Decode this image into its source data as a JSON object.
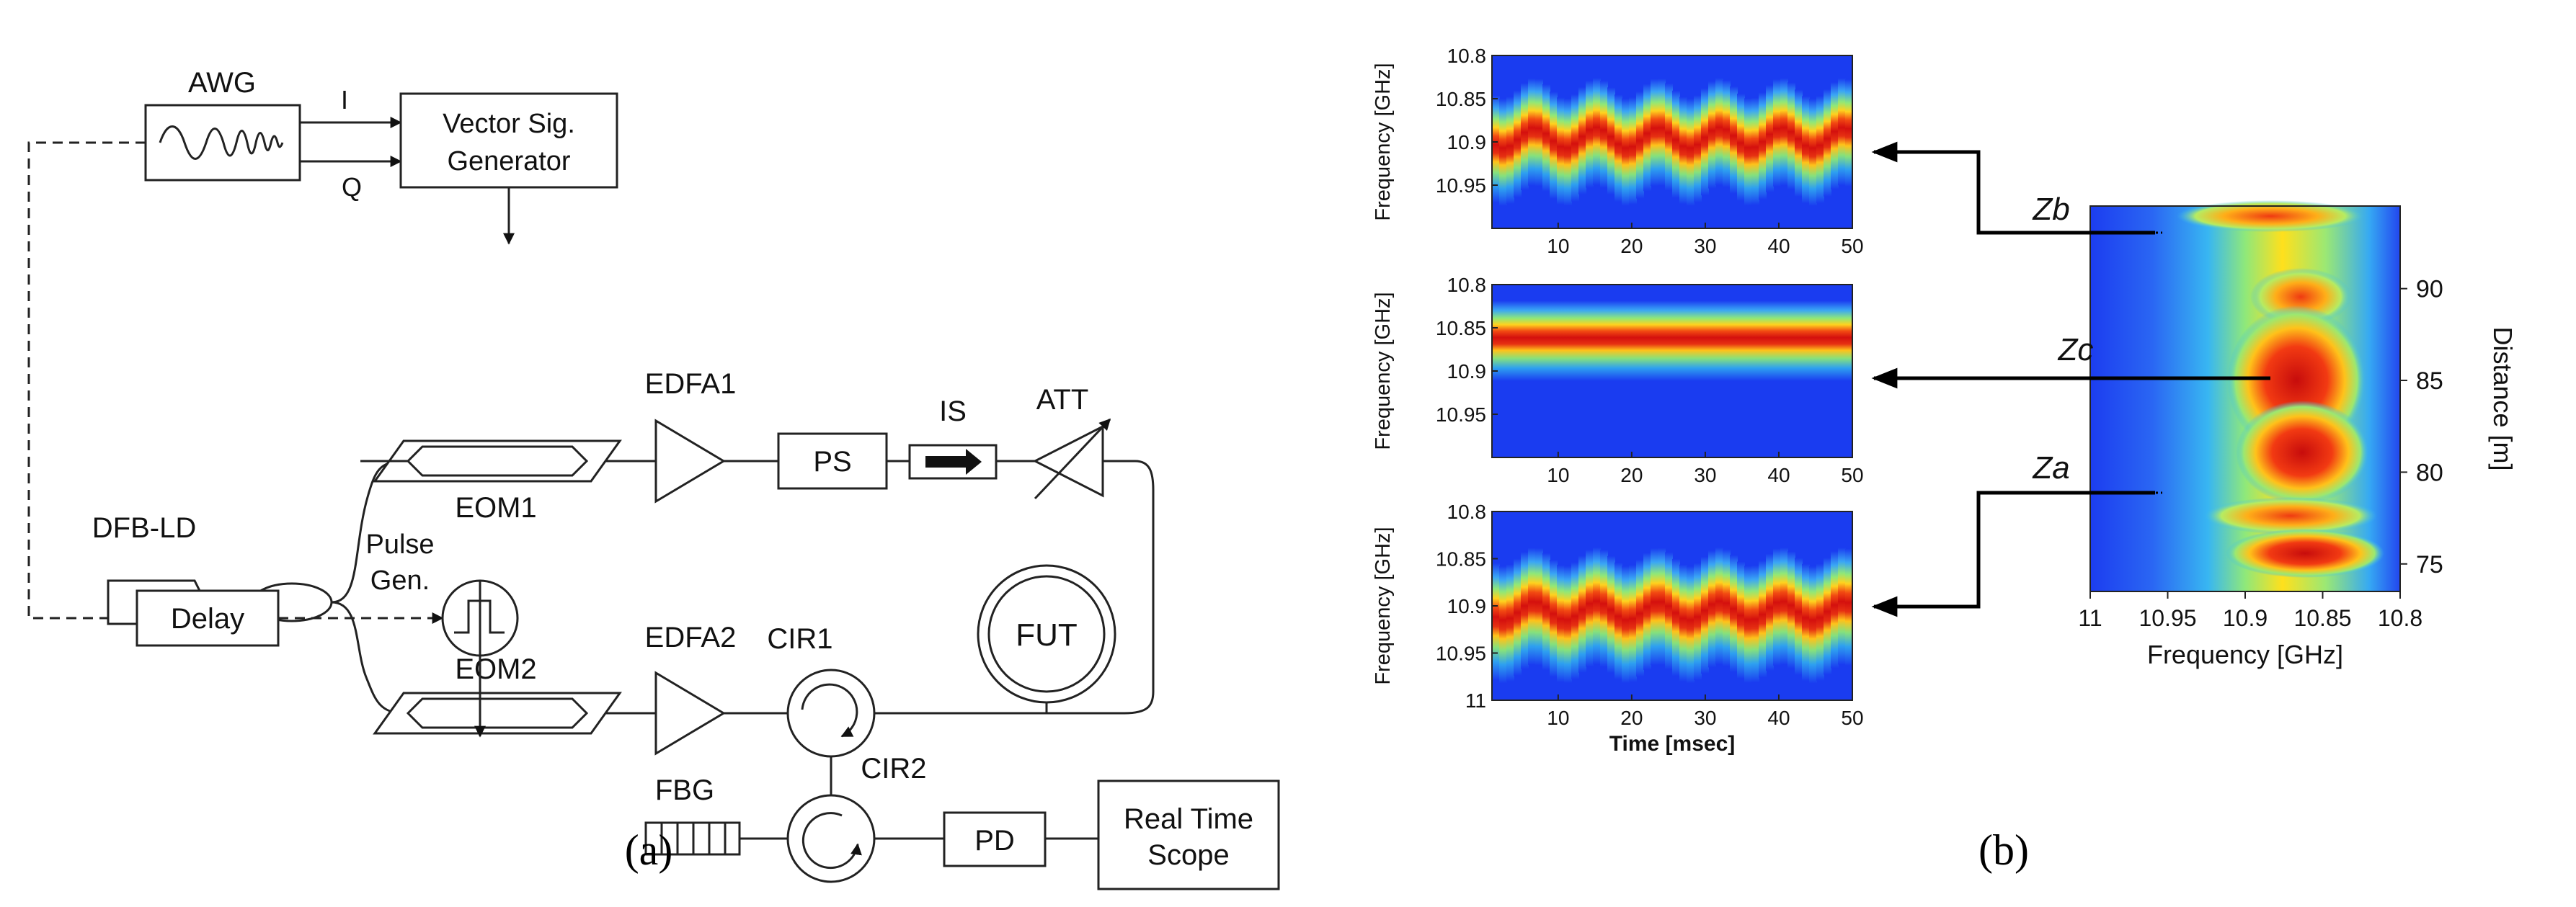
{
  "panel_a": {
    "caption": "(a)",
    "awg": "AWG",
    "i_label": "I",
    "q_label": "Q",
    "vsg_line1": "Vector Sig.",
    "vsg_line2": "Generator",
    "dfb": "DFB-LD",
    "eom1": "EOM1",
    "eom2": "EOM2",
    "edfa1": "EDFA1",
    "edfa2": "EDFA2",
    "ps": "PS",
    "is": "IS",
    "att": "ATT",
    "fut": "FUT",
    "cir1": "CIR1",
    "cir2": "CIR2",
    "pulse_line1": "Pulse",
    "pulse_line2": "Gen.",
    "delay": "Delay",
    "fbg": "FBG",
    "pd": "PD",
    "scope_line1": "Real Time",
    "scope_line2": "Scope"
  },
  "panel_b": {
    "caption": "(b)",
    "small_ylabel": "Frequency [GHz]",
    "small_xlabel": "Time [msec]",
    "big_xlabel": "Frequency [GHz]",
    "big_ylabel": "Distance [m]",
    "za": "Za",
    "zb": "Zb",
    "zc": "Zc"
  },
  "chart_data": [
    {
      "type": "heatmap",
      "panel": "top",
      "xlabel": "",
      "ylabel": "Frequency [GHz]",
      "xticks": [
        "10",
        "20",
        "30",
        "40",
        "50"
      ],
      "yticks": [
        "10.8",
        "10.85",
        "10.9",
        "10.95"
      ],
      "x": [
        1,
        50
      ],
      "ylim": [
        10.8,
        11.0
      ],
      "peak_center_ghz": 10.9,
      "oscillation_amplitude_ghz": 0.012,
      "oscillation_period_msec": 8.4
    },
    {
      "type": "heatmap",
      "panel": "middle",
      "xlabel": "",
      "ylabel": "Frequency [GHz]",
      "xticks": [
        "10",
        "20",
        "30",
        "40",
        "50"
      ],
      "yticks": [
        "10.8",
        "10.85",
        "10.9",
        "10.95"
      ],
      "x": [
        1,
        50
      ],
      "ylim": [
        10.8,
        11.0
      ],
      "peak_center_ghz": 10.865,
      "oscillation_amplitude_ghz": 0.0,
      "oscillation_period_msec": 8.4
    },
    {
      "type": "heatmap",
      "panel": "bottom",
      "xlabel": "Time [msec]",
      "ylabel": "Frequency [GHz]",
      "xticks": [
        "10",
        "20",
        "30",
        "40",
        "50"
      ],
      "yticks": [
        "10.8",
        "10.85",
        "10.9",
        "10.95",
        "11"
      ],
      "x": [
        1,
        50
      ],
      "ylim": [
        10.8,
        11.0
      ],
      "peak_center_ghz": 10.91,
      "oscillation_amplitude_ghz": 0.01,
      "oscillation_period_msec": 8.4
    },
    {
      "type": "heatmap",
      "panel": "right",
      "xlabel": "Frequency [GHz]",
      "ylabel": "Distance [m]",
      "xticks": [
        "11",
        "10.95",
        "10.9",
        "10.85",
        "10.8"
      ],
      "yticks": [
        "75",
        "80",
        "85",
        "90"
      ],
      "xlim": [
        11.0,
        10.8
      ],
      "ylim": [
        73.5,
        94.5
      ],
      "annotations": [
        {
          "label": "Za",
          "distance_m": 76.9,
          "frequency_ghz": 10.9
        },
        {
          "label": "Zb",
          "distance_m": 92.6,
          "frequency_ghz": 10.9
        },
        {
          "label": "Zc",
          "distance_m": 83.8,
          "frequency_ghz": 10.865
        }
      ]
    }
  ]
}
